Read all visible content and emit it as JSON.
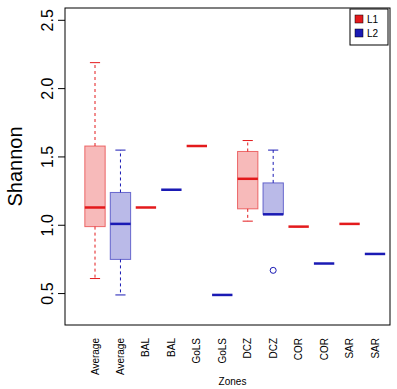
{
  "chart_data": {
    "type": "boxplot",
    "x_label": "Zones",
    "y_label": "Shannon",
    "categories": [
      "Average",
      "Average",
      "BAL",
      "BAL",
      "GoLS",
      "GoLS",
      "DCZ",
      "DCZ",
      "COR",
      "COR",
      "SAR",
      "SAR"
    ],
    "ylim": [
      0.27,
      2.59
    ],
    "yticks": [
      0.5,
      {
        "value": 1,
        "label": "1.0"
      },
      1.5,
      {
        "value": 2,
        "label": "2.0"
      },
      2.5
    ],
    "grid": false,
    "legend": "top-right",
    "series": [
      {
        "name": "L1",
        "color": "#e31a1c",
        "boxes": [
          {
            "min": 0.61,
            "q1": 0.99,
            "median": 1.13,
            "q3": 1.58,
            "max": 2.19,
            "outliers": []
          },
          null,
          {
            "min": 1.13,
            "q1": 1.13,
            "median": 1.13,
            "q3": 1.13,
            "max": 1.13,
            "outliers": []
          },
          null,
          {
            "min": 1.58,
            "q1": 1.58,
            "median": 1.58,
            "q3": 1.58,
            "max": 1.58,
            "outliers": []
          },
          null,
          {
            "min": 1.03,
            "q1": 1.12,
            "median": 1.34,
            "q3": 1.54,
            "max": 1.62,
            "outliers": []
          },
          null,
          {
            "min": 0.99,
            "q1": 0.99,
            "median": 0.99,
            "q3": 0.99,
            "max": 0.99,
            "outliers": []
          },
          null,
          {
            "min": 1.01,
            "q1": 1.01,
            "median": 1.01,
            "q3": 1.01,
            "max": 1.01,
            "outliers": []
          },
          null
        ]
      },
      {
        "name": "L2",
        "color": "#1a1ab4",
        "boxes": [
          null,
          {
            "min": 0.49,
            "q1": 0.75,
            "median": 1.01,
            "q3": 1.24,
            "max": 1.55,
            "outliers": []
          },
          null,
          {
            "min": 1.26,
            "q1": 1.26,
            "median": 1.26,
            "q3": 1.26,
            "max": 1.26,
            "outliers": []
          },
          null,
          {
            "min": 0.49,
            "q1": 0.49,
            "median": 0.49,
            "q3": 0.49,
            "max": 0.49,
            "outliers": []
          },
          null,
          {
            "min": 1.08,
            "q1": 1.08,
            "median": 1.08,
            "q3": 1.31,
            "max": 1.55,
            "outliers": [
              0.67
            ]
          },
          null,
          {
            "min": 0.72,
            "q1": 0.72,
            "median": 0.72,
            "q3": 0.72,
            "max": 0.72,
            "outliers": []
          },
          null,
          {
            "min": 0.79,
            "q1": 0.79,
            "median": 0.79,
            "q3": 0.79,
            "max": 0.79,
            "outliers": []
          }
        ]
      }
    ]
  }
}
